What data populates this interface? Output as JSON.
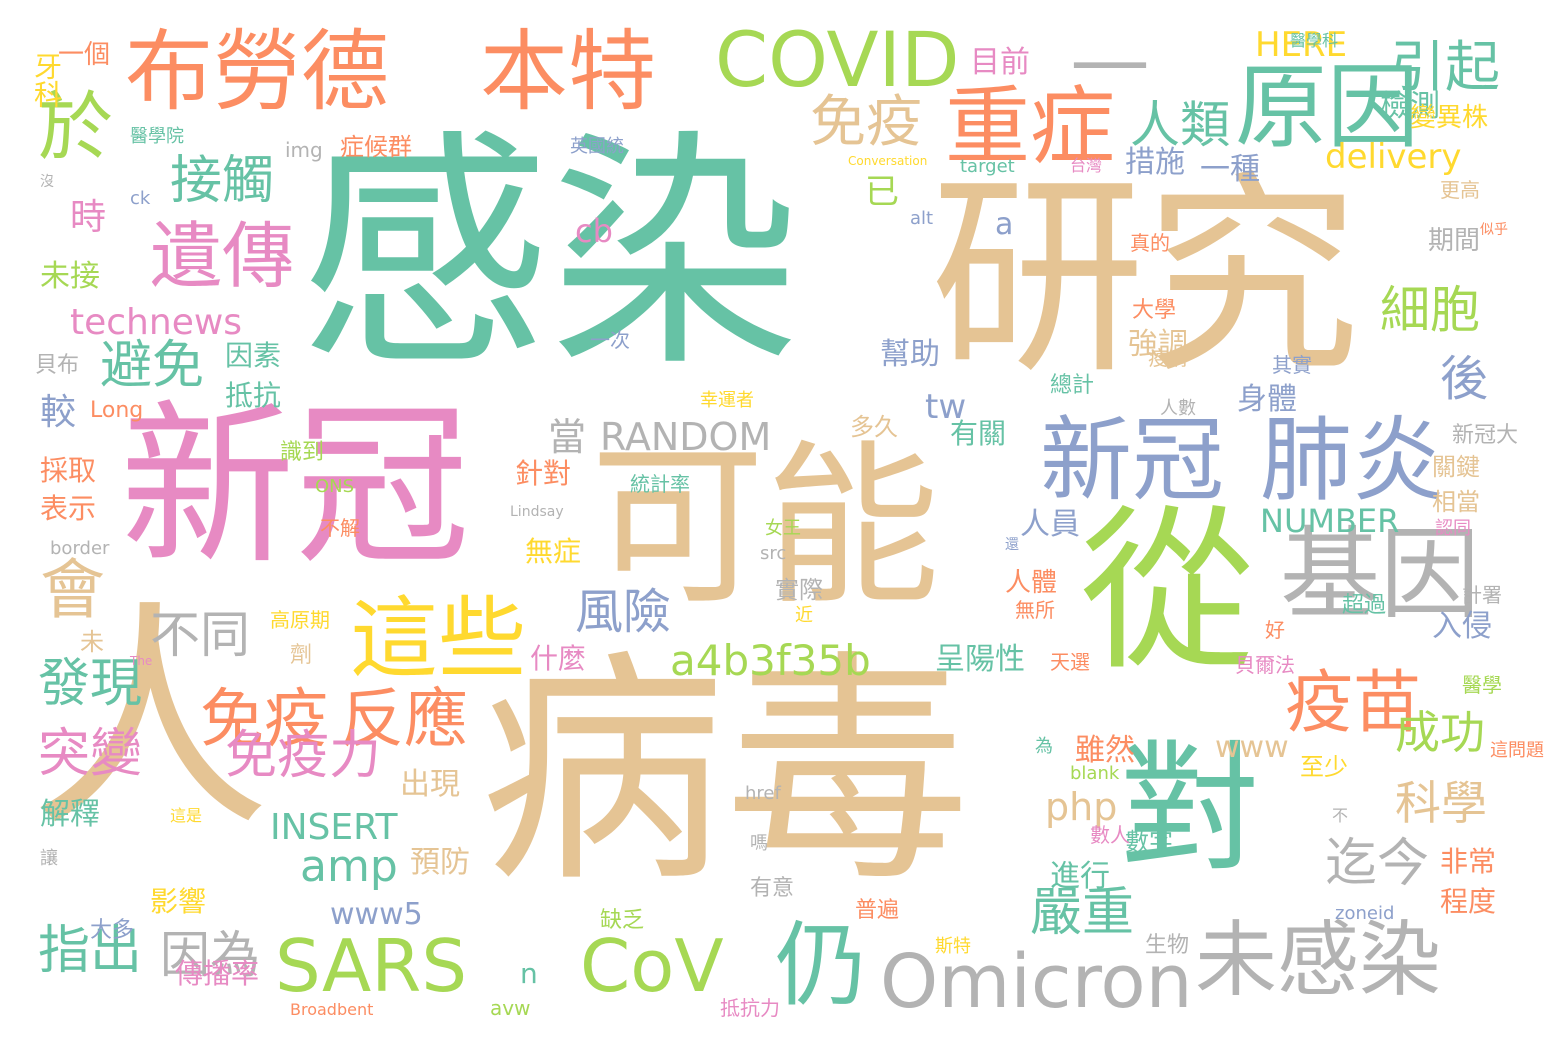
{
  "palette": {
    "green": "#66c2a5",
    "orange": "#fc8d62",
    "blue": "#8da0cb",
    "pink": "#e78ac3",
    "lime": "#a6d854",
    "yellow": "#ffd92f",
    "tan": "#e5c494",
    "gray": "#b3b3b3"
  },
  "words": [
    {
      "text": "感染",
      "color": "green"
    },
    {
      "text": "研究",
      "color": "tan"
    },
    {
      "text": "病毒",
      "color": "tan"
    },
    {
      "text": "人",
      "color": "tan"
    },
    {
      "text": "新冠",
      "color": "pink"
    },
    {
      "text": "可能",
      "color": "tan"
    },
    {
      "text": "從",
      "color": "lime"
    },
    {
      "text": "對",
      "color": "green"
    },
    {
      "text": "布勞德",
      "color": "orange"
    },
    {
      "text": "本特",
      "color": "orange"
    },
    {
      "text": "COVID",
      "color": "lime"
    },
    {
      "text": "—",
      "color": "gray"
    },
    {
      "text": "原因",
      "color": "green"
    },
    {
      "text": "重症",
      "color": "orange"
    },
    {
      "text": "新冠",
      "color": "blue"
    },
    {
      "text": "肺炎",
      "color": "blue"
    },
    {
      "text": "基因",
      "color": "gray"
    },
    {
      "text": "於",
      "color": "lime"
    },
    {
      "text": "遺傳",
      "color": "pink"
    },
    {
      "text": "這些",
      "color": "yellow"
    },
    {
      "text": "SARS",
      "color": "lime"
    },
    {
      "text": "CoV",
      "color": "lime"
    },
    {
      "text": "Omicron",
      "color": "gray"
    },
    {
      "text": "未感染",
      "color": "gray"
    },
    {
      "text": "疫苗",
      "color": "orange"
    },
    {
      "text": "免疫",
      "color": "orange"
    },
    {
      "text": "反應",
      "color": "orange"
    },
    {
      "text": "仍",
      "color": "green"
    },
    {
      "text": "會",
      "color": "tan"
    },
    {
      "text": "免疫",
      "color": "tan"
    },
    {
      "text": "人類",
      "color": "green"
    },
    {
      "text": "引起",
      "color": "green"
    },
    {
      "text": "接觸",
      "color": "green"
    },
    {
      "text": "technews",
      "color": "pink"
    },
    {
      "text": "避免",
      "color": "green"
    },
    {
      "text": "免疫力",
      "color": "pink"
    },
    {
      "text": "突變",
      "color": "pink"
    },
    {
      "text": "發現",
      "color": "green"
    },
    {
      "text": "指出",
      "color": "green"
    },
    {
      "text": "因為",
      "color": "gray"
    },
    {
      "text": "不同",
      "color": "gray"
    },
    {
      "text": "風險",
      "color": "blue"
    },
    {
      "text": "a4b3f35b",
      "color": "lime"
    },
    {
      "text": "amp",
      "color": "green"
    },
    {
      "text": "INSERT",
      "color": "green"
    },
    {
      "text": "www5",
      "color": "blue"
    },
    {
      "text": "delivery",
      "color": "yellow"
    },
    {
      "text": "細胞",
      "color": "lime"
    },
    {
      "text": "後",
      "color": "blue"
    },
    {
      "text": "RANDOM",
      "color": "gray"
    },
    {
      "text": "當",
      "color": "gray"
    },
    {
      "text": "嚴重",
      "color": "green"
    },
    {
      "text": "迄今",
      "color": "gray"
    },
    {
      "text": "科學",
      "color": "tan"
    },
    {
      "text": "成功",
      "color": "lime"
    },
    {
      "text": "www",
      "color": "tan"
    },
    {
      "text": "php",
      "color": "tan"
    },
    {
      "text": "NUMBER",
      "color": "green"
    },
    {
      "text": "檢測",
      "color": "green"
    },
    {
      "text": "措施",
      "color": "blue"
    },
    {
      "text": "一種",
      "color": "blue"
    },
    {
      "text": "HERE",
      "color": "yellow"
    },
    {
      "text": "目前",
      "color": "pink"
    },
    {
      "text": "一個",
      "color": "orange"
    },
    {
      "text": "症候群",
      "color": "orange"
    },
    {
      "text": "img",
      "color": "gray"
    },
    {
      "text": "cb",
      "color": "pink"
    },
    {
      "text": "tw",
      "color": "blue"
    },
    {
      "text": "a",
      "color": "blue"
    },
    {
      "text": "已",
      "color": "lime"
    },
    {
      "text": "時",
      "color": "pink"
    },
    {
      "text": "未接",
      "color": "lime"
    },
    {
      "text": "因素",
      "color": "green"
    },
    {
      "text": "抵抗",
      "color": "green"
    },
    {
      "text": "較",
      "color": "blue"
    },
    {
      "text": "Long",
      "color": "orange"
    },
    {
      "text": "幫助",
      "color": "blue"
    },
    {
      "text": "強調",
      "color": "tan"
    },
    {
      "text": "身體",
      "color": "blue"
    },
    {
      "text": "有關",
      "color": "green"
    },
    {
      "text": "多久",
      "color": "tan"
    },
    {
      "text": "針對",
      "color": "orange"
    },
    {
      "text": "無症",
      "color": "yellow"
    },
    {
      "text": "雖然",
      "color": "orange"
    },
    {
      "text": "呈陽性",
      "color": "green"
    },
    {
      "text": "人員",
      "color": "blue"
    },
    {
      "text": "人體",
      "color": "orange"
    },
    {
      "text": "什麼",
      "color": "pink"
    },
    {
      "text": "採取",
      "color": "orange"
    },
    {
      "text": "表示",
      "color": "orange"
    },
    {
      "text": "解釋",
      "color": "green"
    },
    {
      "text": "出現",
      "color": "tan"
    },
    {
      "text": "預防",
      "color": "tan"
    },
    {
      "text": "影響",
      "color": "yellow"
    },
    {
      "text": "傳播率",
      "color": "pink"
    },
    {
      "text": "大多",
      "color": "blue"
    },
    {
      "text": "進行",
      "color": "green"
    },
    {
      "text": "非常",
      "color": "orange"
    },
    {
      "text": "程度",
      "color": "orange"
    },
    {
      "text": "關鍵",
      "color": "tan"
    },
    {
      "text": "相當",
      "color": "tan"
    },
    {
      "text": "入侵",
      "color": "blue"
    },
    {
      "text": "變異株",
      "color": "yellow"
    },
    {
      "text": "更高",
      "color": "tan"
    },
    {
      "text": "英國統",
      "color": "blue"
    },
    {
      "text": "target",
      "color": "green"
    },
    {
      "text": "ONS",
      "color": "lime"
    },
    {
      "text": "統計率",
      "color": "green"
    },
    {
      "text": "Lindsay",
      "color": "gray"
    },
    {
      "text": "border",
      "color": "gray"
    },
    {
      "text": "src",
      "color": "gray"
    },
    {
      "text": "href",
      "color": "gray"
    },
    {
      "text": "blank",
      "color": "lime"
    },
    {
      "text": "zoneid",
      "color": "blue"
    },
    {
      "text": "avw",
      "color": "lime"
    },
    {
      "text": "Broadbent",
      "color": "orange"
    },
    {
      "text": "n",
      "color": "green"
    },
    {
      "text": "alt",
      "color": "blue"
    },
    {
      "text": "ck",
      "color": "blue"
    },
    {
      "text": "The",
      "color": "pink"
    },
    {
      "text": "Conversation",
      "color": "yellow"
    },
    {
      "text": "醫學科",
      "color": "green"
    },
    {
      "text": "台灣",
      "color": "pink"
    },
    {
      "text": "醫學院",
      "color": "green"
    },
    {
      "text": "牙科",
      "color": "yellow"
    },
    {
      "text": "沒",
      "color": "gray"
    },
    {
      "text": "貝布",
      "color": "gray"
    },
    {
      "text": "識到",
      "color": "lime"
    },
    {
      "text": "大學",
      "color": "orange"
    },
    {
      "text": "疫情",
      "color": "tan"
    },
    {
      "text": "總計",
      "color": "green"
    },
    {
      "text": "其實",
      "color": "blue"
    },
    {
      "text": "真的",
      "color": "orange"
    },
    {
      "text": "一次",
      "color": "blue"
    },
    {
      "text": "幸運者",
      "color": "yellow"
    },
    {
      "text": "人數",
      "color": "gray"
    },
    {
      "text": "新冠大",
      "color": "gray"
    },
    {
      "text": "認同",
      "color": "pink"
    },
    {
      "text": "計署",
      "color": "gray"
    },
    {
      "text": "醫學",
      "color": "lime"
    },
    {
      "text": "超過",
      "color": "green"
    },
    {
      "text": "好",
      "color": "orange"
    },
    {
      "text": "貝爾法",
      "color": "pink"
    },
    {
      "text": "天選",
      "color": "orange"
    },
    {
      "text": "無所",
      "color": "orange"
    },
    {
      "text": "實際",
      "color": "gray"
    },
    {
      "text": "近",
      "color": "yellow"
    },
    {
      "text": "女王",
      "color": "lime"
    },
    {
      "text": "不解",
      "color": "orange"
    },
    {
      "text": "還",
      "color": "blue"
    },
    {
      "text": "高原期",
      "color": "yellow"
    },
    {
      "text": "劑",
      "color": "tan"
    },
    {
      "text": "未",
      "color": "tan"
    },
    {
      "text": "為",
      "color": "green"
    },
    {
      "text": "至少",
      "color": "yellow"
    },
    {
      "text": "數字",
      "color": "green"
    },
    {
      "text": "數人",
      "color": "pink"
    },
    {
      "text": "嗎",
      "color": "gray"
    },
    {
      "text": "有意",
      "color": "gray"
    },
    {
      "text": "普遍",
      "color": "orange"
    },
    {
      "text": "缺乏",
      "color": "lime"
    },
    {
      "text": "抵抗力",
      "color": "pink"
    },
    {
      "text": "生物",
      "color": "gray"
    },
    {
      "text": "斯特",
      "color": "yellow"
    },
    {
      "text": "這問題",
      "color": "orange"
    },
    {
      "text": "不",
      "color": "gray"
    },
    {
      "text": "讓",
      "color": "gray"
    },
    {
      "text": "這是",
      "color": "yellow"
    },
    {
      "text": "似乎",
      "color": "orange"
    },
    {
      "text": "期間",
      "color": "gray"
    },
    {
      "text": "狀",
      "color": "orange"
    }
  ]
}
